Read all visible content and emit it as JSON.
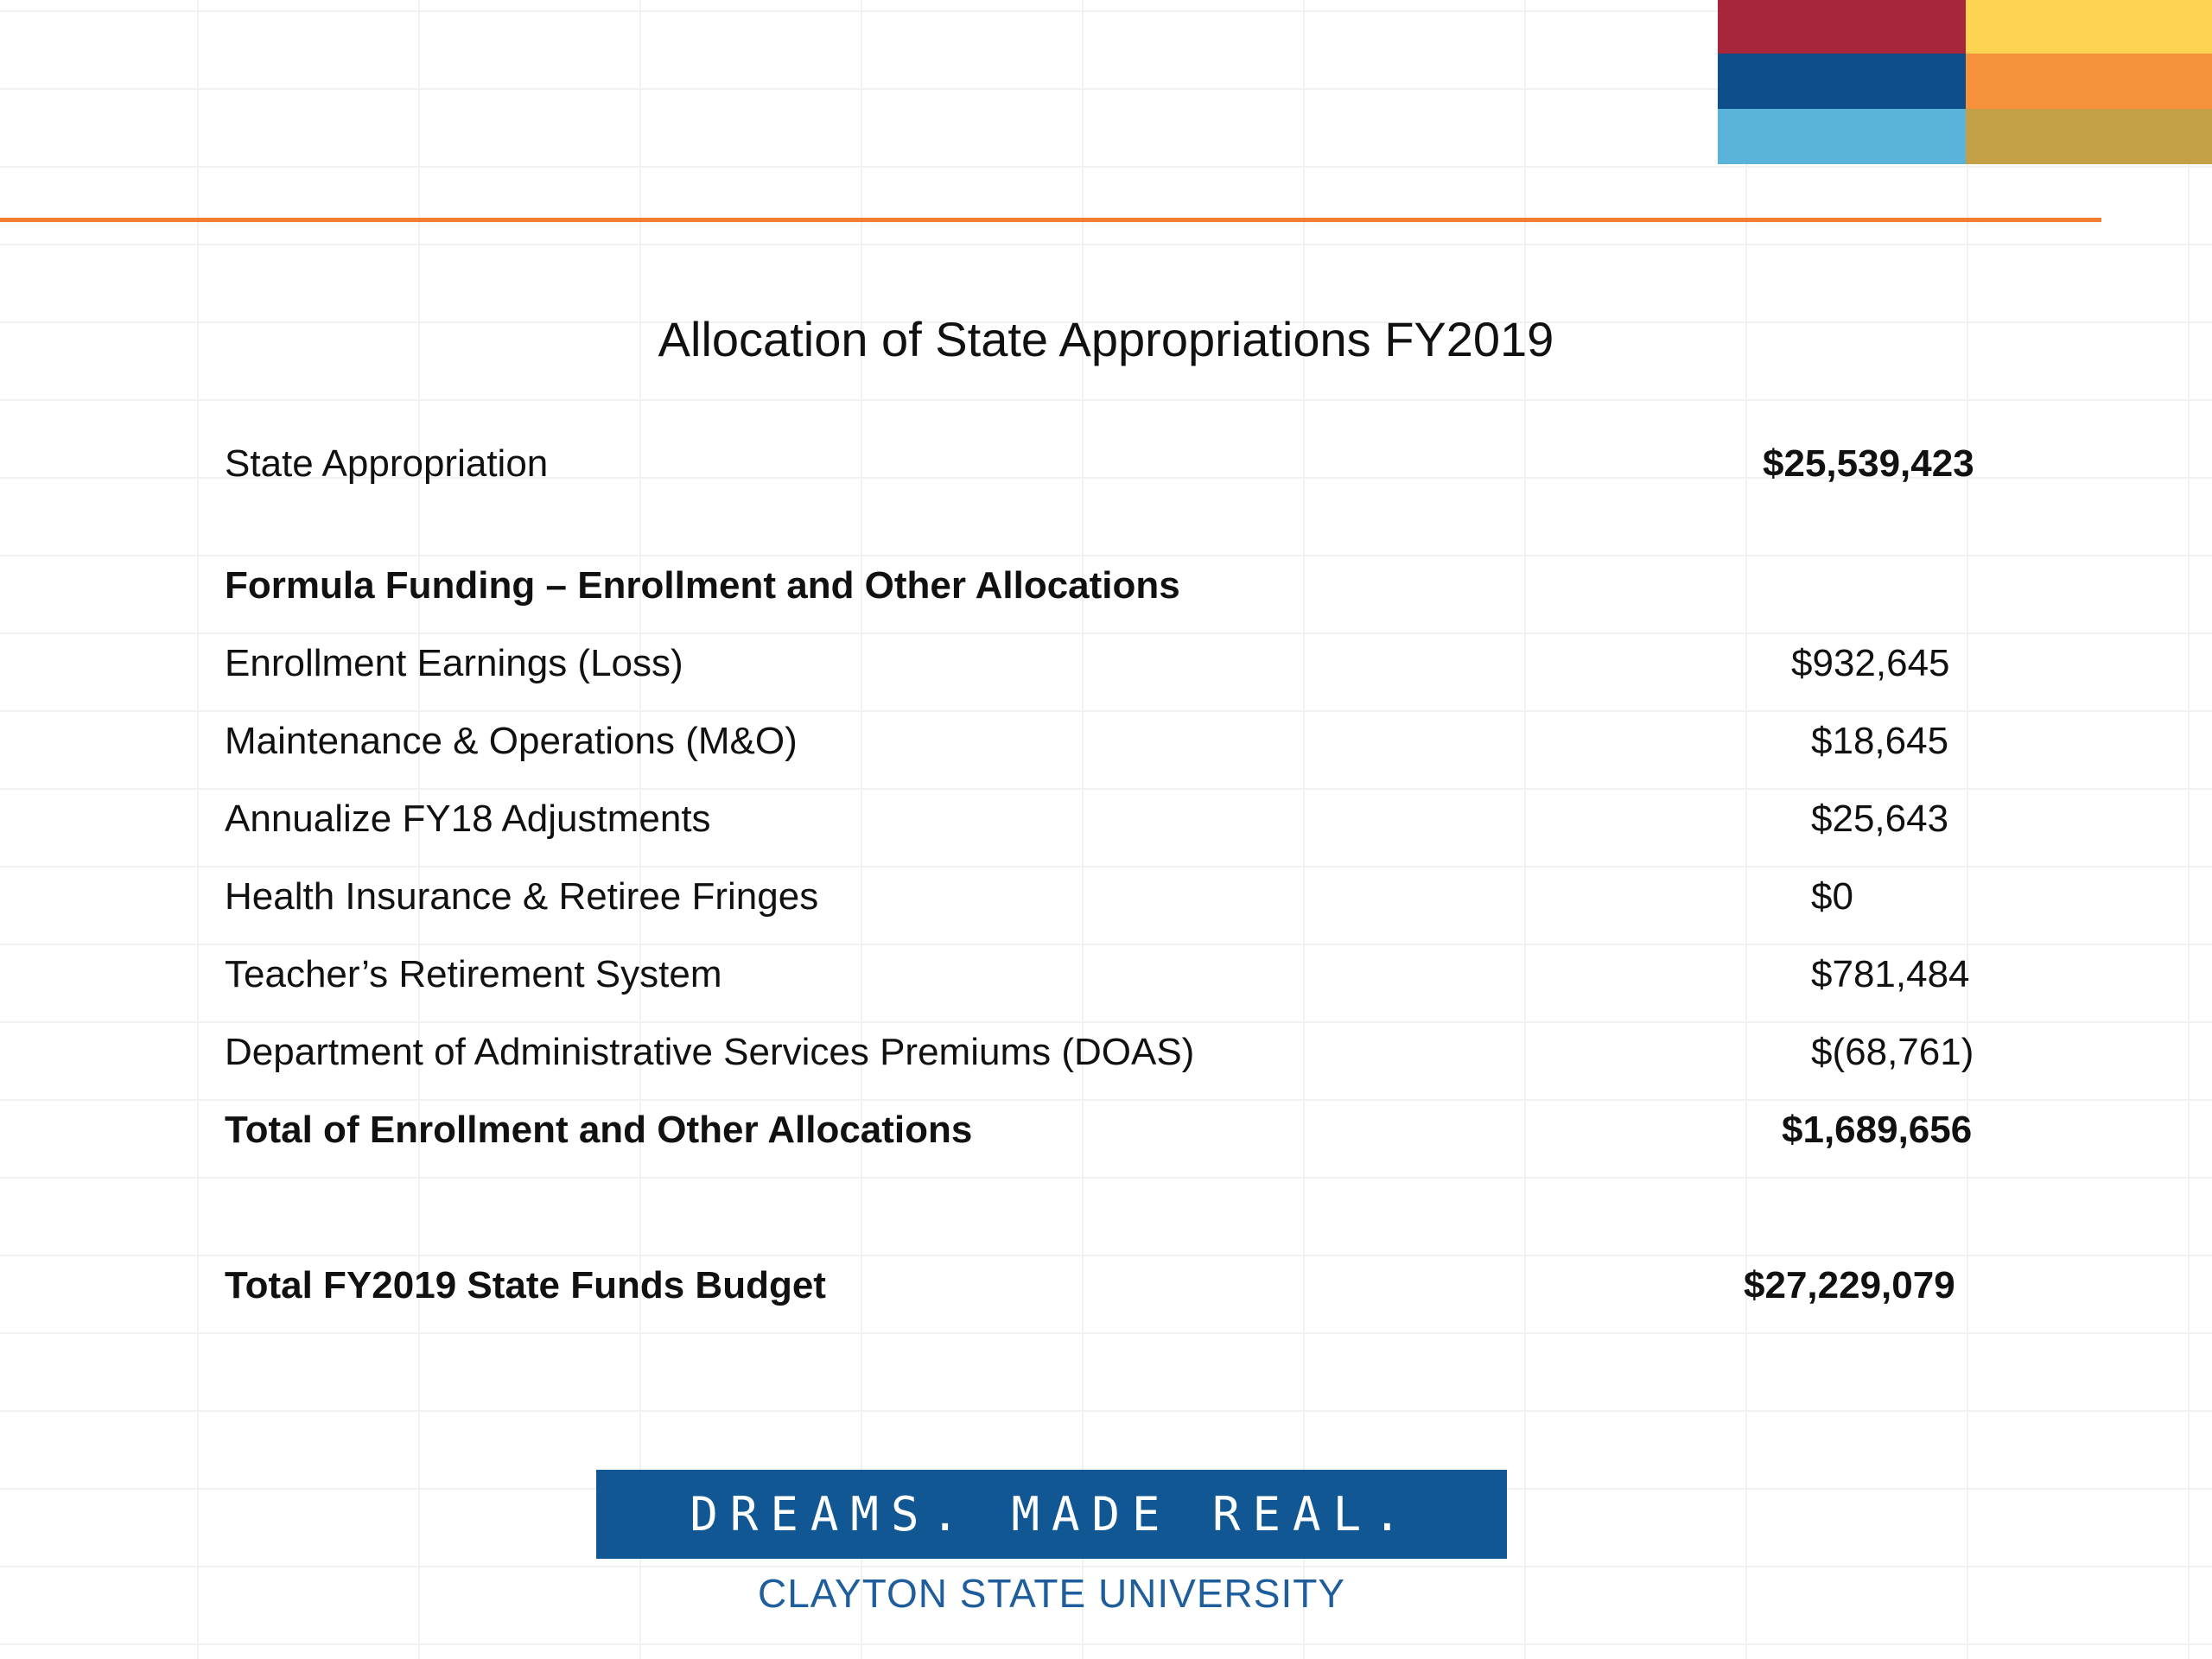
{
  "colors": {
    "accent_rule": "#f08030",
    "block": [
      "#a8263b",
      "#fdd352",
      "#0e4f8b",
      "#f6923c",
      "#5ab3d8",
      "#c3a045"
    ],
    "banner_bg": "#115793",
    "brand_text": "#1f5e9c"
  },
  "slide": {
    "title": "Allocation of State Appropriations FY2019"
  },
  "table": {
    "rows": [
      {
        "label": "State Appropriation",
        "amount": "$25,539,423"
      },
      {
        "label": "Formula Funding – Enrollment and Other Allocations",
        "amount": ""
      },
      {
        "label": "Enrollment Earnings (Loss)",
        "amount": "$932,645"
      },
      {
        "label": "Maintenance & Operations (M&O)",
        "amount": "$18,645"
      },
      {
        "label": "Annualize FY18 Adjustments",
        "amount": "$25,643"
      },
      {
        "label": "Health Insurance & Retiree Fringes",
        "amount": "$0"
      },
      {
        "label": "Teacher’s Retirement System",
        "amount": "$781,484"
      },
      {
        "label": "Department of Administrative Services Premiums (DOAS)",
        "amount": "$(68,761)"
      },
      {
        "label": "Total of Enrollment and Other Allocations",
        "amount": "$1,689,656"
      },
      {
        "label": "Total FY2019 State Funds Budget",
        "amount": "$27,229,079"
      }
    ]
  },
  "footer": {
    "tagline": "DREAMS. MADE REAL.",
    "university": "CLAYTON STATE UNIVERSITY"
  }
}
